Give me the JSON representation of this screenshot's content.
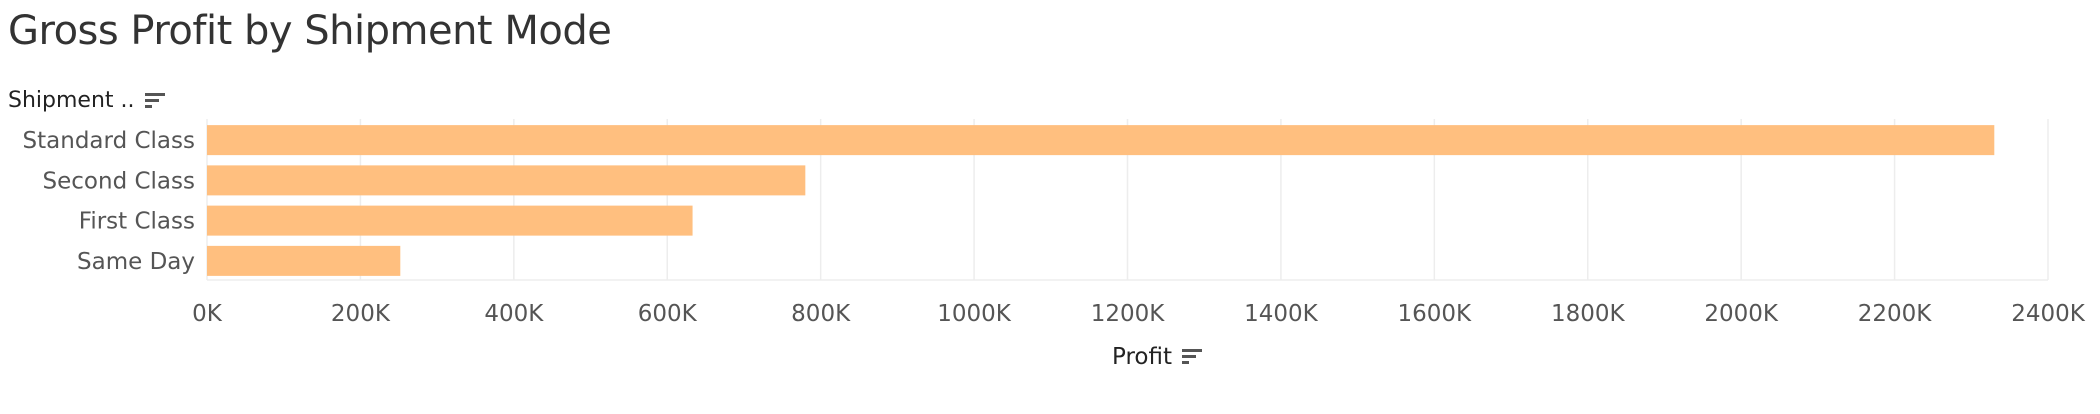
{
  "title": "Gross Profit by Shipment Mode",
  "row_header": "Shipment ..",
  "x_axis_title": "Profit",
  "icons": [
    "sort-icon"
  ],
  "colors": {
    "bar": "#FFBF7F",
    "grid": "#EDEDED",
    "text": "#555555"
  },
  "chart_data": {
    "type": "bar",
    "orientation": "horizontal",
    "title": "Gross Profit by Shipment Mode",
    "categories": [
      "Standard Class",
      "Second Class",
      "First Class",
      "Same Day"
    ],
    "values": [
      2330000,
      780000,
      633000,
      252000
    ],
    "xlabel": "Profit",
    "ylabel": "Shipment ..",
    "xlim": [
      0,
      2400000
    ],
    "xticks": [
      "0K",
      "200K",
      "400K",
      "600K",
      "800K",
      "1000K",
      "1200K",
      "1400K",
      "1600K",
      "1800K",
      "2000K",
      "2200K",
      "2400K"
    ],
    "grid": true,
    "legend": "none"
  }
}
